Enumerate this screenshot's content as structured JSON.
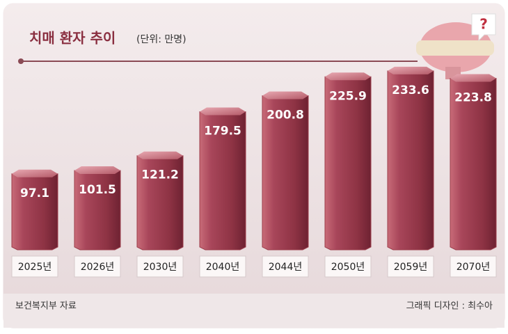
{
  "chart_data": {
    "type": "bar",
    "title": "치매 환자 추이",
    "subtitle": "(단위: 만명)",
    "categories": [
      "2025년",
      "2026년",
      "2030년",
      "2040년",
      "2044년",
      "2050년",
      "2059년",
      "2070년"
    ],
    "values": [
      97.1,
      101.5,
      121.2,
      179.5,
      200.8,
      225.9,
      233.6,
      223.8
    ],
    "color": "#9c3c4a",
    "ylim": [
      0,
      240
    ],
    "source": "보건복지부 자료",
    "credit": "그래픽 디자인 : 최수아"
  }
}
